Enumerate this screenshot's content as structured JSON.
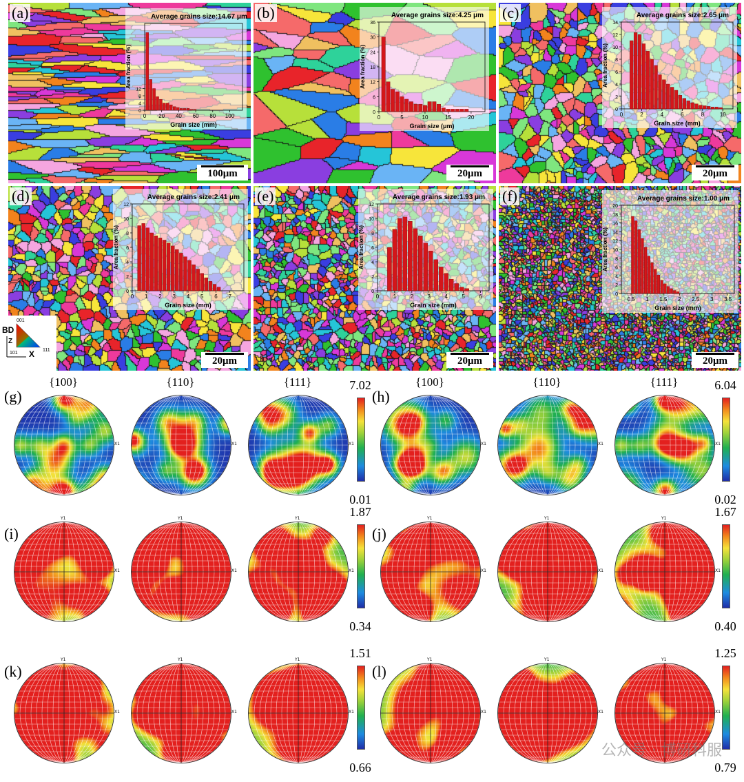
{
  "ebsd_panels": [
    {
      "label": "(a)",
      "avg": "Average grains size:14.67 μm",
      "scale": "100μm",
      "xlabel": "Grain size (mm)",
      "ylabel": "Area fraction (%)",
      "seed": 1
    },
    {
      "label": "(b)",
      "avg": "Average grains size:4.25 μm",
      "scale": "20μm",
      "xlabel": "Grain size (μm)",
      "ylabel": "Area fraction (%)",
      "seed": 2
    },
    {
      "label": "(c)",
      "avg": "Average grains size:2.65 μm",
      "scale": "20μm",
      "xlabel": "Grain size (mm)",
      "ylabel": "Area fraction (%)",
      "seed": 3
    },
    {
      "label": "(d)",
      "avg": "Average grains size:2.41 μm",
      "scale": "20μm",
      "xlabel": "Grain size (mm)",
      "ylabel": "Area fraction (%)",
      "seed": 4
    },
    {
      "label": "(e)",
      "avg": "Average grains size:1.93 μm",
      "scale": "20μm",
      "xlabel": "Grain size (mm)",
      "ylabel": "Area fraction (%)",
      "seed": 5
    },
    {
      "label": "(f)",
      "avg": "Average grains size:1.00 μm",
      "scale": "20μm",
      "xlabel": "Grain size (mm)",
      "ylabel": "Area fraction (%)",
      "seed": 6
    }
  ],
  "ipf_key": {
    "bd": "BD",
    "z": "Z",
    "x": "X",
    "v001": "001",
    "v101": "101",
    "v111": "111"
  },
  "pole_rows": [
    {
      "left_label": "(g)",
      "right_label": "(h)",
      "left_max": "7.02",
      "left_min": "0.01",
      "right_max": "6.04",
      "right_min": "0.02",
      "show_titles": true
    },
    {
      "left_label": "(i)",
      "right_label": "(j)",
      "left_max": "1.87",
      "left_min": "0.34",
      "right_max": "1.67",
      "right_min": "0.40",
      "show_titles": false
    },
    {
      "left_label": "(k)",
      "right_label": "(l)",
      "left_max": "1.51",
      "left_min": "0.66",
      "right_max": "1.25",
      "right_min": "0.79",
      "show_titles": false
    }
  ],
  "pole_titles": [
    "{100}",
    "{110}",
    "{111}"
  ],
  "pole_axis_tags": {
    "x": "X1",
    "y": "Y1"
  },
  "watermark": "公众号 · 博研科服",
  "chart_data": [
    {
      "type": "bar",
      "title": "Average grains size:14.67 μm",
      "xlabel": "Grain size (mm)",
      "ylabel": "Area fraction (%)",
      "x": [
        3,
        7,
        11,
        15,
        19,
        23,
        27,
        31,
        35,
        39,
        43,
        47,
        51,
        55,
        59
      ],
      "values": [
        43,
        17,
        12,
        7.5,
        6,
        4,
        4,
        3,
        2,
        1.5,
        1,
        1,
        1,
        0.5,
        0.5
      ],
      "xlim": [
        0,
        115
      ],
      "ylim": [
        0,
        48
      ],
      "xticks": [
        0,
        20,
        40,
        60,
        80,
        100
      ],
      "yticks": [
        0,
        4,
        8,
        12
      ]
    },
    {
      "type": "bar",
      "title": "Average grains size:4.25 μm",
      "xlabel": "Grain size (μm)",
      "ylabel": "Area fraction (%)",
      "x": [
        1,
        2,
        3,
        4,
        5,
        6,
        7,
        8,
        9,
        10,
        11,
        12,
        13,
        14,
        15,
        16,
        17,
        18,
        19
      ],
      "values": [
        30,
        12,
        9,
        8,
        6,
        5,
        4,
        3,
        3,
        2.5,
        4,
        4,
        3,
        1.5,
        1,
        1,
        1,
        1,
        1
      ],
      "xlim": [
        0,
        23
      ],
      "ylim": [
        0,
        36
      ],
      "xticks": [
        0,
        5,
        10,
        15,
        20
      ],
      "yticks": [
        0,
        6,
        12,
        18,
        24,
        30,
        36
      ]
    },
    {
      "type": "bar",
      "title": "Average grains size:2.65 μm",
      "xlabel": "Grain size (mm)",
      "ylabel": "Area fraction (%)",
      "x": [
        1.0,
        1.4,
        1.8,
        2.2,
        2.6,
        3.0,
        3.4,
        3.8,
        4.2,
        4.6,
        5.0,
        5.4,
        5.8,
        6.2,
        6.6,
        7.0,
        7.4,
        7.8,
        8.2,
        8.6,
        9.0,
        9.4,
        9.8
      ],
      "values": [
        11,
        12.3,
        12,
        10.5,
        9.3,
        8,
        7,
        5.5,
        4.7,
        4,
        3.5,
        3,
        2.2,
        1.7,
        1.3,
        1,
        0.8,
        0.6,
        0.5,
        0.4,
        0.3,
        0.3,
        0.2
      ],
      "xlim": [
        0,
        11
      ],
      "ylim": [
        0,
        14
      ],
      "xticks": [
        0,
        2,
        4,
        6,
        8,
        10
      ],
      "yticks": [
        0,
        2,
        4,
        6,
        8,
        10,
        12,
        14
      ]
    },
    {
      "type": "bar",
      "title": "Average grains size:2.41 μm",
      "xlabel": "Grain size (mm)",
      "ylabel": "Area fraction (%)",
      "x": [
        0.5,
        0.8,
        1.1,
        1.4,
        1.7,
        2.0,
        2.3,
        2.6,
        2.9,
        3.2,
        3.5,
        3.8,
        4.1,
        4.4,
        4.7,
        5.0,
        5.3,
        5.6,
        5.9,
        6.2
      ],
      "values": [
        9,
        9.3,
        8.7,
        8,
        7.6,
        7.3,
        7,
        6.6,
        6.2,
        5.7,
        5.2,
        4.7,
        4.2,
        3.6,
        3,
        2.4,
        1.8,
        1.3,
        0.9,
        0.5
      ],
      "xlim": [
        0,
        8
      ],
      "ylim": [
        0,
        12
      ],
      "xticks": [
        0,
        1,
        2,
        3,
        4,
        5,
        6,
        7
      ],
      "yticks": [
        0,
        2,
        4,
        6,
        8,
        10,
        12
      ]
    },
    {
      "type": "bar",
      "title": "Average grains size:1.93 μm",
      "xlabel": "Grain size (mm)",
      "ylabel": "Area fraction (%)",
      "x": [
        0.7,
        1.0,
        1.3,
        1.6,
        1.9,
        2.2,
        2.5,
        2.8,
        3.1,
        3.4,
        3.7,
        4.0,
        4.3,
        4.6,
        4.9,
        5.2
      ],
      "values": [
        6,
        8.5,
        10,
        10.2,
        9.6,
        8.6,
        7.6,
        6.6,
        5.5,
        4.3,
        3.3,
        2.4,
        1.6,
        1,
        0.5,
        0.3
      ],
      "xlim": [
        0,
        6.5
      ],
      "ylim": [
        0,
        12
      ],
      "xticks": [
        0,
        1,
        2,
        3,
        4,
        5,
        6
      ],
      "yticks": [
        0,
        2,
        4,
        6,
        8,
        10,
        12
      ]
    },
    {
      "type": "bar",
      "title": "Average grains size:1.00 μm",
      "xlabel": "Grain size (mm)",
      "ylabel": "Area fraction (%)",
      "x": [
        0.55,
        0.65,
        0.75,
        0.85,
        0.95,
        1.05,
        1.15,
        1.25,
        1.35,
        1.45,
        1.55,
        1.65,
        1.75,
        1.85,
        1.95
      ],
      "values": [
        17.5,
        16.5,
        14.5,
        12.5,
        10.5,
        8.5,
        7,
        5.5,
        4.2,
        3,
        2.2,
        1.6,
        1.1,
        0.7,
        0.4
      ],
      "xlim": [
        0.2,
        3.7
      ],
      "ylim": [
        0,
        20
      ],
      "xticks": [
        0.5,
        1.0,
        1.5,
        2.0,
        2.5,
        3.0,
        3.5
      ],
      "yticks": [
        0,
        2,
        4,
        6,
        8,
        10,
        12,
        14,
        16,
        18,
        20
      ]
    }
  ]
}
